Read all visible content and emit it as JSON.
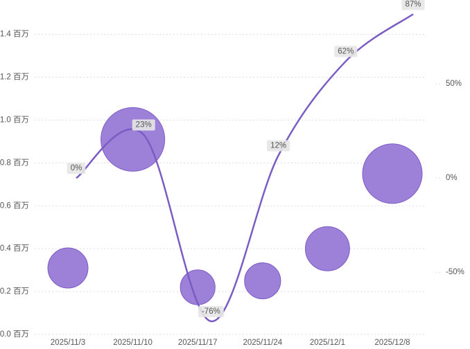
{
  "chart_data": {
    "type": "bubble",
    "categories": [
      "2025/11/3",
      "2025/11/10",
      "2025/11/17",
      "2025/11/24",
      "2025/12/1",
      "2025/12/8"
    ],
    "series": [
      {
        "type": "bubble",
        "color": "#9575d4",
        "values": [
          0.31,
          0.91,
          0.22,
          0.25,
          0.4,
          0.75
        ],
        "sizes": [
          0.84,
          2.12,
          0.63,
          0.68,
          1.02,
          1.85
        ]
      },
      {
        "type": "line",
        "axis": "y2",
        "color": "#7b5cc4",
        "values": [
          0,
          23,
          -76,
          12,
          62,
          87
        ],
        "value_labels": [
          "0%",
          "23%",
          "-76%",
          "12%",
          "62%",
          "87%"
        ]
      }
    ],
    "ylim": [
      0,
      1.56
    ],
    "yticks": [
      {
        "value": 0,
        "label": "0.0 百万"
      },
      {
        "value": 0.2,
        "label": "0.2 百万"
      },
      {
        "value": 0.4,
        "label": "0.4 百万"
      },
      {
        "value": 0.6,
        "label": "0.6 百万"
      },
      {
        "value": 0.8,
        "label": "0.8 百万"
      },
      {
        "value": 1.0,
        "label": "1.0 百万"
      },
      {
        "value": 1.2,
        "label": "1.2 百万"
      },
      {
        "value": 1.4,
        "label": "1.4 百万"
      }
    ],
    "y2lim": [
      -83,
      94.5
    ],
    "y2ticks": [
      {
        "value": -50,
        "label": "-50%"
      },
      {
        "value": 0,
        "label": "0%"
      },
      {
        "value": 50,
        "label": "50%"
      }
    ],
    "grid": true
  }
}
